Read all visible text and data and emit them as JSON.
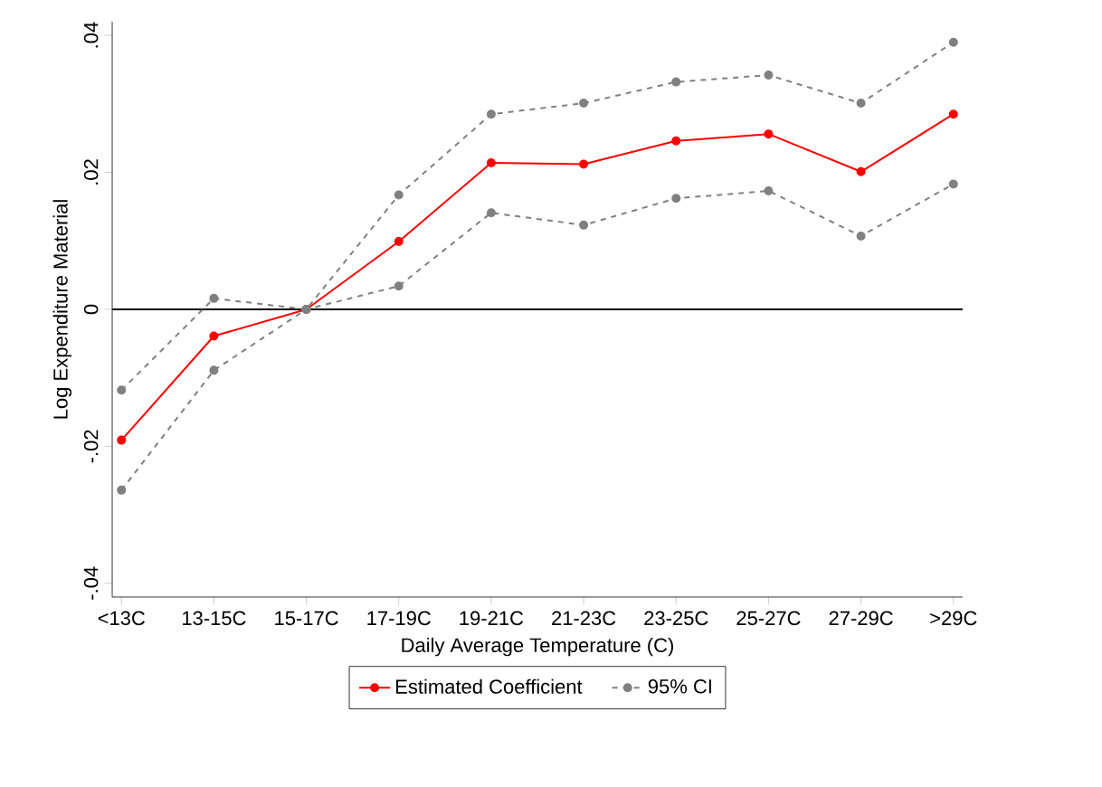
{
  "chart_data": {
    "type": "line",
    "xlabel": "Daily Average Temperature (C)",
    "ylabel": "Log Expenditure Material",
    "categories": [
      "<13C",
      "13-15C",
      "15-17C",
      "17-19C",
      "19-21C",
      "21-23C",
      "23-25C",
      "25-27C",
      "27-29C",
      ">29C"
    ],
    "series": [
      {
        "name": "Estimated Coefficient",
        "color": "#ff0000",
        "line_style": "solid",
        "values": [
          -0.0191,
          -0.0039,
          0,
          0.0099,
          0.0214,
          0.0212,
          0.0246,
          0.0256,
          0.0201,
          0.0285
        ]
      },
      {
        "name": "95% CI",
        "color": "#808080",
        "line_style": "dashed",
        "values": [
          -0.0118,
          0.0016,
          0,
          0.0167,
          0.0285,
          0.0301,
          0.0332,
          0.0342,
          0.0301,
          0.039
        ]
      },
      {
        "color": "#808080",
        "line_style": "dashed",
        "values": [
          -0.0264,
          -0.0089,
          0,
          0.0034,
          0.0141,
          0.0123,
          0.0162,
          0.0173,
          0.0107,
          0.0183
        ]
      }
    ],
    "ylim": [
      -0.042,
      0.042
    ],
    "yticks": [
      {
        "value": -0.04,
        "label": "-.04"
      },
      {
        "value": -0.02,
        "label": "-.02"
      },
      {
        "value": 0,
        "label": "0"
      },
      {
        "value": 0.02,
        "label": ".02"
      },
      {
        "value": 0.04,
        "label": ".04"
      }
    ],
    "ref_lines": [
      {
        "axis": "y",
        "value": 0,
        "color": "#000000"
      }
    ],
    "marker": "circle",
    "legend": "bottom",
    "grid": false
  }
}
